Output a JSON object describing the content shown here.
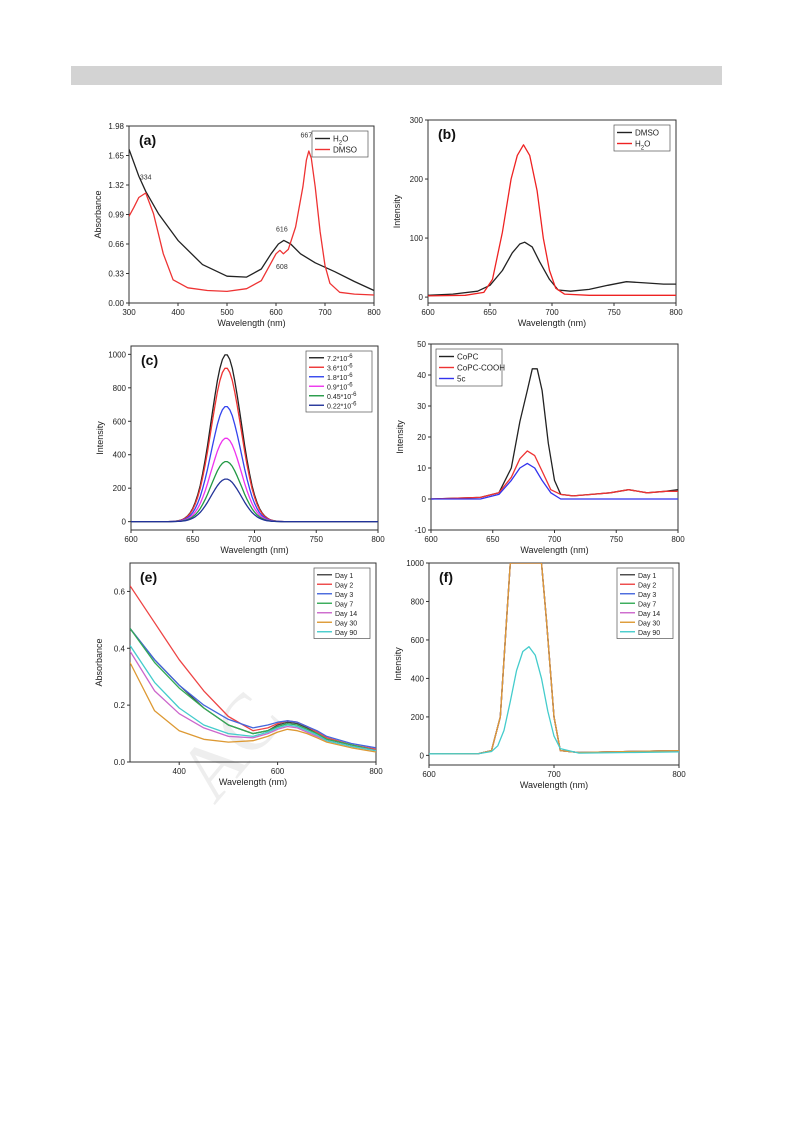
{
  "page": {
    "watermark": "AC"
  },
  "chart_data": [
    {
      "type": "line",
      "panel_label": "(a)",
      "xlabel": "Wavelength (nm)",
      "ylabel": "Absorbance",
      "xlim": [
        300,
        800
      ],
      "ylim": [
        0,
        1.98
      ],
      "xticks": [
        300,
        400,
        500,
        600,
        700,
        800
      ],
      "yticks": [
        0.0,
        0.33,
        0.66,
        0.99,
        1.32,
        1.65,
        1.98
      ],
      "ytick_labels": [
        "0.00",
        "0.33",
        "0.66",
        "0.99",
        "1.32",
        "1.65",
        "1.98"
      ],
      "legend_position": "top-right",
      "series": [
        {
          "name": "H2O",
          "legend_main": "H",
          "legend_sub": "2",
          "legend_rest": "O",
          "color": "#222222",
          "x": [
            300,
            320,
            334,
            360,
            400,
            450,
            500,
            540,
            570,
            590,
            605,
            616,
            630,
            650,
            680,
            720,
            760,
            800
          ],
          "y": [
            1.72,
            1.42,
            1.25,
            1.0,
            0.7,
            0.43,
            0.3,
            0.29,
            0.38,
            0.55,
            0.66,
            0.7,
            0.66,
            0.55,
            0.45,
            0.35,
            0.24,
            0.14
          ]
        },
        {
          "name": "DMSO",
          "color": "#ee3333",
          "x": [
            300,
            310,
            320,
            334,
            350,
            370,
            390,
            420,
            460,
            500,
            540,
            570,
            590,
            600,
            608,
            615,
            625,
            640,
            655,
            662,
            667,
            672,
            680,
            690,
            700,
            710,
            730,
            760,
            800
          ],
          "y": [
            0.97,
            1.07,
            1.18,
            1.23,
            1.0,
            0.55,
            0.26,
            0.17,
            0.14,
            0.13,
            0.16,
            0.25,
            0.45,
            0.55,
            0.59,
            0.55,
            0.6,
            0.85,
            1.3,
            1.6,
            1.7,
            1.62,
            1.3,
            0.8,
            0.42,
            0.22,
            0.12,
            0.1,
            0.09
          ]
        }
      ],
      "annotations": [
        {
          "text": "334",
          "x": 334,
          "y": 1.38
        },
        {
          "text": "616",
          "x": 612,
          "y": 0.8
        },
        {
          "text": "608",
          "x": 612,
          "y": 0.38
        },
        {
          "text": "667",
          "x": 662,
          "y": 1.85
        }
      ]
    },
    {
      "type": "line",
      "panel_label": "(b)",
      "xlabel": "Wavelength (nm)",
      "ylabel": "Intensity",
      "xlim": [
        600,
        800
      ],
      "ylim": [
        -10,
        300
      ],
      "xticks": [
        600,
        650,
        700,
        750,
        800
      ],
      "yticks": [
        0,
        100,
        200,
        300
      ],
      "ytick_labels": [
        "0",
        "100",
        "200",
        "300"
      ],
      "legend_position": "top-right",
      "series": [
        {
          "name": "DMSO",
          "color": "#222222",
          "x": [
            600,
            620,
            640,
            650,
            660,
            668,
            674,
            678,
            684,
            690,
            698,
            705,
            715,
            730,
            745,
            760,
            775,
            790,
            800
          ],
          "y": [
            3,
            5,
            10,
            20,
            45,
            75,
            90,
            93,
            85,
            60,
            30,
            12,
            10,
            13,
            20,
            26,
            24,
            22,
            22
          ]
        },
        {
          "name": "H2O",
          "legend_main": "H",
          "legend_sub": "2",
          "legend_rest": "O",
          "color": "#ee2222",
          "x": [
            600,
            630,
            645,
            652,
            660,
            667,
            672,
            677,
            682,
            688,
            693,
            698,
            703,
            710,
            730,
            760,
            800
          ],
          "y": [
            2,
            3,
            8,
            30,
            110,
            200,
            240,
            258,
            240,
            180,
            100,
            45,
            15,
            5,
            3,
            3,
            3
          ]
        }
      ]
    },
    {
      "type": "line",
      "panel_label": "(c)",
      "xlabel": "Wavelength (nm)",
      "ylabel": "Intensity",
      "xlim": [
        600,
        800
      ],
      "ylim": [
        -50,
        1050
      ],
      "xticks": [
        600,
        650,
        700,
        750,
        800
      ],
      "yticks": [
        0,
        200,
        400,
        600,
        800,
        1000
      ],
      "ytick_labels": [
        "0",
        "200",
        "400",
        "600",
        "800",
        "1000"
      ],
      "legend_position": "top-right",
      "peak": {
        "center": 677,
        "width": 12
      },
      "series": [
        {
          "name": "7.2*10-6",
          "legend_main": "7.2*10",
          "legend_sup": "-6",
          "color": "#222222",
          "peak": 1000
        },
        {
          "name": "3.6*10-6",
          "legend_main": "3.6*10",
          "legend_sup": "-6",
          "color": "#ee3333",
          "peak": 920
        },
        {
          "name": "1.8*10-6",
          "legend_main": "1.8*10",
          "legend_sup": "-6",
          "color": "#3344ee",
          "peak": 690
        },
        {
          "name": "0.9*10-6",
          "legend_main": "0.9*10",
          "legend_sup": "-6",
          "color": "#ee33ee",
          "peak": 500
        },
        {
          "name": "0.45*10-6",
          "legend_main": "0.45*10",
          "legend_sup": "-6",
          "color": "#229944",
          "peak": 360
        },
        {
          "name": "0.22*10-6",
          "legend_main": "0.22*10",
          "legend_sup": "-6",
          "color": "#223399",
          "peak": 255
        }
      ]
    },
    {
      "type": "line",
      "panel_label": "(d)",
      "xlabel": "Wavelength (nm)",
      "ylabel": "Intensity",
      "xlim": [
        600,
        800
      ],
      "ylim": [
        -10,
        50
      ],
      "xticks": [
        600,
        650,
        700,
        750,
        800
      ],
      "yticks": [
        -10,
        0,
        10,
        20,
        30,
        40,
        50
      ],
      "ytick_labels": [
        "-10",
        "0",
        "10",
        "20",
        "30",
        "40",
        "50"
      ],
      "legend_position": "top-left",
      "series": [
        {
          "name": "CoPC",
          "color": "#222222",
          "x": [
            600,
            640,
            655,
            665,
            672,
            678,
            682,
            686,
            690,
            695,
            700,
            705,
            715,
            730,
            745,
            760,
            775,
            790,
            800
          ],
          "y": [
            0,
            0.5,
            2,
            10,
            25,
            35,
            42,
            42,
            35,
            18,
            6,
            1.5,
            1,
            1.5,
            2,
            3,
            2,
            2.5,
            3
          ]
        },
        {
          "name": "CoPC-COOH",
          "color": "#ee3333",
          "x": [
            600,
            640,
            655,
            665,
            672,
            678,
            684,
            690,
            697,
            705,
            715,
            730,
            745,
            760,
            775,
            790,
            800
          ],
          "y": [
            0,
            0.5,
            2,
            7,
            13,
            15.5,
            14,
            9,
            3,
            1.5,
            1,
            1.5,
            2,
            3,
            2,
            2.5,
            2.5
          ]
        },
        {
          "name": "5c",
          "color": "#3333ee",
          "x": [
            600,
            640,
            655,
            665,
            672,
            678,
            684,
            690,
            697,
            705,
            730,
            760,
            800
          ],
          "y": [
            0,
            0,
            1.5,
            6,
            10,
            11.5,
            10,
            6,
            2,
            0,
            0,
            0,
            0
          ]
        }
      ]
    },
    {
      "type": "line",
      "panel_label": "(e)",
      "xlabel": "Wavelength (nm)",
      "ylabel": "Absorbance",
      "xlim": [
        300,
        800
      ],
      "ylim": [
        0,
        0.7
      ],
      "xticks": [
        400,
        600,
        800
      ],
      "yticks": [
        0.0,
        0.2,
        0.4,
        0.6
      ],
      "ytick_labels": [
        "0.0",
        "0.2",
        "0.4",
        "0.6"
      ],
      "legend_position": "top-right",
      "x": [
        300,
        350,
        400,
        450,
        500,
        550,
        580,
        600,
        620,
        640,
        660,
        680,
        700,
        750,
        800
      ],
      "series": [
        {
          "name": "Day 1",
          "color": "#444444",
          "values": [
            0.47,
            0.36,
            0.27,
            0.19,
            0.13,
            0.1,
            0.11,
            0.13,
            0.14,
            0.135,
            0.12,
            0.1,
            0.08,
            0.06,
            0.04
          ]
        },
        {
          "name": "Day 2",
          "color": "#ee4444",
          "values": [
            0.62,
            0.49,
            0.36,
            0.25,
            0.16,
            0.11,
            0.12,
            0.135,
            0.145,
            0.14,
            0.125,
            0.105,
            0.085,
            0.06,
            0.045
          ]
        },
        {
          "name": "Day 3",
          "color": "#4466dd",
          "values": [
            0.47,
            0.36,
            0.27,
            0.2,
            0.15,
            0.12,
            0.13,
            0.14,
            0.145,
            0.14,
            0.125,
            0.11,
            0.09,
            0.065,
            0.05
          ]
        },
        {
          "name": "Day 7",
          "color": "#33aa55",
          "values": [
            0.47,
            0.35,
            0.26,
            0.19,
            0.13,
            0.1,
            0.11,
            0.125,
            0.135,
            0.13,
            0.115,
            0.1,
            0.08,
            0.06,
            0.04
          ]
        },
        {
          "name": "Day 14",
          "color": "#cc66cc",
          "values": [
            0.39,
            0.25,
            0.17,
            0.12,
            0.09,
            0.085,
            0.1,
            0.115,
            0.125,
            0.12,
            0.105,
            0.09,
            0.075,
            0.055,
            0.04
          ]
        },
        {
          "name": "Day 30",
          "color": "#dd9933",
          "values": [
            0.35,
            0.18,
            0.11,
            0.08,
            0.07,
            0.075,
            0.09,
            0.105,
            0.115,
            0.11,
            0.1,
            0.085,
            0.07,
            0.05,
            0.035
          ]
        },
        {
          "name": "Day 90",
          "color": "#44cccc",
          "values": [
            0.41,
            0.28,
            0.19,
            0.13,
            0.1,
            0.09,
            0.105,
            0.12,
            0.13,
            0.125,
            0.11,
            0.095,
            0.075,
            0.055,
            0.04
          ]
        }
      ]
    },
    {
      "type": "line",
      "panel_label": "(f)",
      "xlabel": "Wavelength (nm)",
      "ylabel": "Intensity",
      "xlim": [
        600,
        800
      ],
      "ylim": [
        -50,
        1000
      ],
      "xticks": [
        600,
        700,
        800
      ],
      "yticks": [
        0,
        200,
        400,
        600,
        800,
        1000
      ],
      "ytick_labels": [
        "0",
        "200",
        "400",
        "600",
        "800",
        "1000"
      ],
      "legend_position": "top-right",
      "series": [
        {
          "name": "Day 1",
          "color": "#444444",
          "x": [
            600,
            640,
            650,
            657,
            662,
            665,
            690,
            694,
            700,
            705,
            720,
            760,
            800
          ],
          "y": [
            8,
            10,
            25,
            200,
            700,
            1000,
            1000,
            700,
            200,
            25,
            15,
            20,
            25
          ]
        },
        {
          "name": "Day 2",
          "color": "#ee4444",
          "x": [
            600,
            640,
            650,
            657,
            662,
            665,
            690,
            694,
            700,
            705,
            720,
            760,
            800
          ],
          "y": [
            8,
            10,
            25,
            200,
            700,
            1000,
            1000,
            700,
            200,
            25,
            15,
            20,
            25
          ]
        },
        {
          "name": "Day 3",
          "color": "#4466dd",
          "x": [
            600,
            640,
            650,
            657,
            662,
            665,
            690,
            694,
            700,
            705,
            720,
            760,
            800
          ],
          "y": [
            8,
            10,
            25,
            200,
            700,
            1000,
            1000,
            700,
            200,
            25,
            15,
            20,
            25
          ]
        },
        {
          "name": "Day 7",
          "color": "#33aa55",
          "x": [
            600,
            640,
            650,
            657,
            662,
            665,
            690,
            694,
            700,
            705,
            720,
            760,
            800
          ],
          "y": [
            8,
            10,
            25,
            200,
            700,
            1000,
            1000,
            700,
            200,
            25,
            15,
            20,
            25
          ]
        },
        {
          "name": "Day 14",
          "color": "#cc66cc",
          "x": [
            600,
            640,
            650,
            657,
            662,
            665,
            690,
            694,
            700,
            705,
            720,
            760,
            800
          ],
          "y": [
            8,
            10,
            25,
            200,
            700,
            1000,
            1000,
            700,
            200,
            25,
            15,
            20,
            25
          ]
        },
        {
          "name": "Day 30",
          "color": "#dd9933",
          "x": [
            600,
            640,
            650,
            657,
            662,
            665,
            690,
            694,
            700,
            705,
            720,
            760,
            800
          ],
          "y": [
            8,
            10,
            25,
            200,
            700,
            1000,
            1000,
            700,
            200,
            25,
            15,
            20,
            25
          ]
        },
        {
          "name": "Day 90",
          "color": "#44cccc",
          "x": [
            600,
            640,
            650,
            655,
            660,
            665,
            670,
            675,
            680,
            685,
            690,
            695,
            700,
            705,
            720,
            760,
            800
          ],
          "y": [
            8,
            9,
            20,
            50,
            130,
            280,
            440,
            540,
            565,
            520,
            400,
            230,
            100,
            35,
            12,
            15,
            18
          ]
        }
      ]
    }
  ]
}
